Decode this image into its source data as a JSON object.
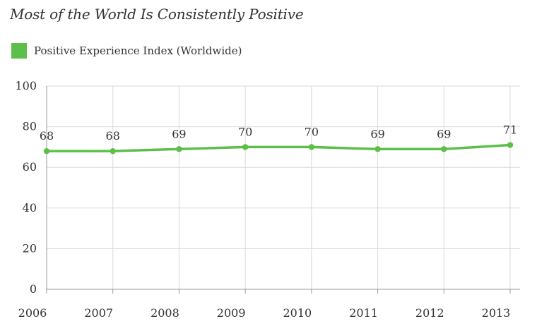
{
  "title": "Most of the World Is Consistently Positive",
  "legend": {
    "label": "Positive Experience Index (Worldwide)"
  },
  "colors": {
    "series": "#5cbf4a",
    "grid": "#d9d9d9",
    "axis": "#999999",
    "text": "#333333"
  },
  "chart_data": {
    "type": "line",
    "title": "Most of the World Is Consistently Positive",
    "x": [
      "2006",
      "2007",
      "2008",
      "2009",
      "2010",
      "2011",
      "2012",
      "2013"
    ],
    "series": [
      {
        "name": "Positive Experience Index (Worldwide)",
        "values": [
          68,
          68,
          69,
          70,
          70,
          69,
          69,
          71
        ]
      }
    ],
    "yticks": [
      0,
      20,
      40,
      60,
      80,
      100
    ],
    "ylim": [
      0,
      100
    ],
    "xlabel": "",
    "ylabel": "",
    "grid": true,
    "legend_position": "top-left",
    "data_labels": true
  }
}
